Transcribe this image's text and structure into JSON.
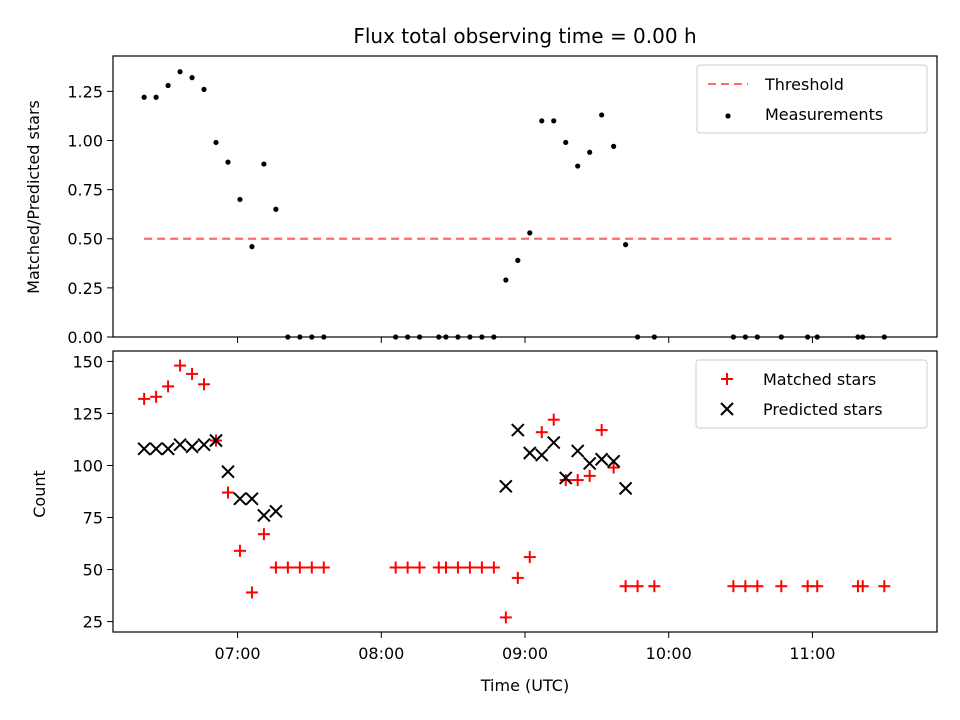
{
  "chart_data": {
    "title": "Flux total observing time = 0.00 h",
    "xlabel": "Time (UTC)",
    "xlim": [
      "06:08",
      "11:52"
    ],
    "xticks": [
      "07:00",
      "08:00",
      "09:00",
      "10:00",
      "11:00"
    ],
    "top": {
      "type": "scatter",
      "ylabel": "Matched/Predicted stars",
      "ylim": [
        0,
        1.43
      ],
      "yticks": [
        "0.00",
        "0.25",
        "0.50",
        "0.75",
        "1.00",
        "1.25"
      ],
      "legend_position": "top-right",
      "threshold": {
        "name": "Threshold",
        "value": 0.5,
        "x_range": [
          "06:21",
          "11:33"
        ],
        "color": "#ff6b6b"
      },
      "measurements": {
        "name": "Measurements",
        "color": "#000000",
        "points": [
          [
            "06:21",
            1.22
          ],
          [
            "06:26",
            1.22
          ],
          [
            "06:31",
            1.28
          ],
          [
            "06:36",
            1.35
          ],
          [
            "06:41",
            1.32
          ],
          [
            "06:46",
            1.26
          ],
          [
            "06:51",
            0.99
          ],
          [
            "06:56",
            0.89
          ],
          [
            "07:01",
            0.7
          ],
          [
            "07:06",
            0.46
          ],
          [
            "07:11",
            0.88
          ],
          [
            "07:16",
            0.65
          ],
          [
            "07:21",
            0
          ],
          [
            "07:26",
            0
          ],
          [
            "07:31",
            0
          ],
          [
            "07:36",
            0
          ],
          [
            "08:06",
            0
          ],
          [
            "08:11",
            0
          ],
          [
            "08:16",
            0
          ],
          [
            "08:24",
            0
          ],
          [
            "08:27",
            0
          ],
          [
            "08:32",
            0
          ],
          [
            "08:37",
            0
          ],
          [
            "08:42",
            0
          ],
          [
            "08:47",
            0
          ],
          [
            "08:52",
            0.29
          ],
          [
            "08:57",
            0.39
          ],
          [
            "09:02",
            0.53
          ],
          [
            "09:07",
            1.1
          ],
          [
            "09:12",
            1.1
          ],
          [
            "09:17",
            0.99
          ],
          [
            "09:22",
            0.87
          ],
          [
            "09:27",
            0.94
          ],
          [
            "09:32",
            1.13
          ],
          [
            "09:37",
            0.97
          ],
          [
            "09:42",
            0.47
          ],
          [
            "09:47",
            0
          ],
          [
            "09:54",
            0
          ],
          [
            "10:27",
            0
          ],
          [
            "10:32",
            0
          ],
          [
            "10:37",
            0
          ],
          [
            "10:47",
            0
          ],
          [
            "10:58",
            0
          ],
          [
            "11:02",
            0
          ],
          [
            "11:19",
            0
          ],
          [
            "11:21",
            0
          ],
          [
            "11:30",
            0
          ]
        ]
      }
    },
    "bottom": {
      "type": "scatter",
      "ylabel": "Count",
      "ylim": [
        20,
        155
      ],
      "yticks": [
        "25",
        "50",
        "75",
        "100",
        "125",
        "150"
      ],
      "legend_position": "top-right",
      "series": [
        {
          "name": "Matched stars",
          "marker": "+",
          "color": "#ff0000",
          "points": [
            [
              "06:21",
              132
            ],
            [
              "06:26",
              133
            ],
            [
              "06:31",
              138
            ],
            [
              "06:36",
              148
            ],
            [
              "06:41",
              144
            ],
            [
              "06:46",
              139
            ],
            [
              "06:51",
              112
            ],
            [
              "06:56",
              87
            ],
            [
              "07:01",
              59
            ],
            [
              "07:06",
              39
            ],
            [
              "07:11",
              67
            ],
            [
              "07:16",
              51
            ],
            [
              "07:21",
              51
            ],
            [
              "07:26",
              51
            ],
            [
              "07:31",
              51
            ],
            [
              "07:36",
              51
            ],
            [
              "08:06",
              51
            ],
            [
              "08:11",
              51
            ],
            [
              "08:16",
              51
            ],
            [
              "08:24",
              51
            ],
            [
              "08:27",
              51
            ],
            [
              "08:32",
              51
            ],
            [
              "08:37",
              51
            ],
            [
              "08:42",
              51
            ],
            [
              "08:47",
              51
            ],
            [
              "08:52",
              27
            ],
            [
              "08:57",
              46
            ],
            [
              "09:02",
              56
            ],
            [
              "09:07",
              116
            ],
            [
              "09:12",
              122
            ],
            [
              "09:17",
              93
            ],
            [
              "09:22",
              93
            ],
            [
              "09:27",
              95
            ],
            [
              "09:32",
              117
            ],
            [
              "09:37",
              99
            ],
            [
              "09:42",
              42
            ],
            [
              "09:47",
              42
            ],
            [
              "09:54",
              42
            ],
            [
              "10:27",
              42
            ],
            [
              "10:32",
              42
            ],
            [
              "10:37",
              42
            ],
            [
              "10:47",
              42
            ],
            [
              "10:58",
              42
            ],
            [
              "11:02",
              42
            ],
            [
              "11:19",
              42
            ],
            [
              "11:21",
              42
            ],
            [
              "11:30",
              42
            ]
          ]
        },
        {
          "name": "Predicted stars",
          "marker": "x",
          "color": "#000000",
          "points": [
            [
              "06:21",
              108
            ],
            [
              "06:26",
              108
            ],
            [
              "06:31",
              108
            ],
            [
              "06:36",
              110
            ],
            [
              "06:41",
              109
            ],
            [
              "06:46",
              110
            ],
            [
              "06:51",
              112
            ],
            [
              "06:56",
              97
            ],
            [
              "07:01",
              84
            ],
            [
              "07:06",
              84
            ],
            [
              "07:11",
              76
            ],
            [
              "07:16",
              78
            ],
            [
              "08:52",
              90
            ],
            [
              "08:57",
              117
            ],
            [
              "09:02",
              106
            ],
            [
              "09:07",
              105
            ],
            [
              "09:12",
              111
            ],
            [
              "09:17",
              94
            ],
            [
              "09:22",
              107
            ],
            [
              "09:27",
              101
            ],
            [
              "09:32",
              103
            ],
            [
              "09:37",
              102
            ],
            [
              "09:42",
              89
            ]
          ]
        }
      ]
    }
  }
}
